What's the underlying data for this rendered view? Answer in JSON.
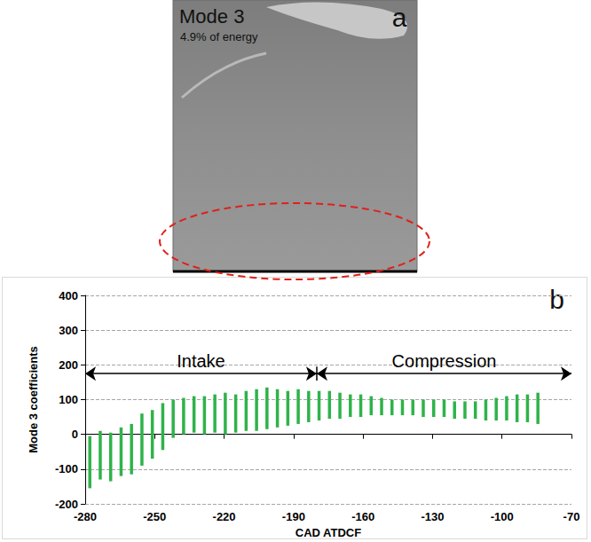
{
  "image_panel": {
    "letter": "a",
    "title": "Mode 3",
    "caption": "4.9% of energy"
  },
  "chart_data": {
    "type": "range_bar",
    "panel_letter": "b",
    "xlabel": "CAD ATDCF",
    "ylabel": "Mode 3 coefficients",
    "color": "#2eb34a",
    "xlim": [
      -280,
      -70
    ],
    "xticks": [
      -280,
      -250,
      -220,
      -190,
      -160,
      -130,
      -100,
      -70
    ],
    "ylim": [
      -200,
      400
    ],
    "yticks": [
      -200,
      -100,
      0,
      100,
      200,
      300,
      400
    ],
    "grid": true,
    "x": [
      -278,
      -273.5,
      -269,
      -264.5,
      -260,
      -255.5,
      -251,
      -246.5,
      -242,
      -237.5,
      -233,
      -228.5,
      -224,
      -219.5,
      -215,
      -210.5,
      -206,
      -201.5,
      -197,
      -192.5,
      -188,
      -183.5,
      -179,
      -174.5,
      -170,
      -165.5,
      -161,
      -156.5,
      -152,
      -147.5,
      -143,
      -138.5,
      -134,
      -129.5,
      -125,
      -120.5,
      -116,
      -111.5,
      -107,
      -102.5,
      -98,
      -93.5,
      -89,
      -84.5
    ],
    "low": [
      -155,
      -130,
      -135,
      -120,
      -115,
      -90,
      -70,
      -45,
      -10,
      0,
      5,
      0,
      5,
      0,
      5,
      10,
      10,
      15,
      20,
      25,
      30,
      35,
      40,
      45,
      45,
      50,
      50,
      55,
      55,
      55,
      55,
      55,
      50,
      50,
      50,
      45,
      45,
      45,
      40,
      40,
      40,
      35,
      35,
      30
    ],
    "high": [
      -5,
      10,
      5,
      20,
      30,
      60,
      70,
      90,
      100,
      105,
      110,
      110,
      115,
      120,
      115,
      125,
      130,
      135,
      130,
      125,
      130,
      125,
      125,
      125,
      120,
      115,
      115,
      110,
      105,
      100,
      100,
      100,
      100,
      100,
      100,
      95,
      95,
      95,
      100,
      105,
      110,
      115,
      115,
      120
    ],
    "annotations": [
      {
        "text": "Intake",
        "x_range": [
          -280,
          -180
        ],
        "y": 175
      },
      {
        "text": "Compression",
        "x_range": [
          -180,
          -70
        ],
        "y": 175
      }
    ],
    "divider": {
      "x": -180,
      "y_range": [
        155,
        195
      ]
    }
  }
}
